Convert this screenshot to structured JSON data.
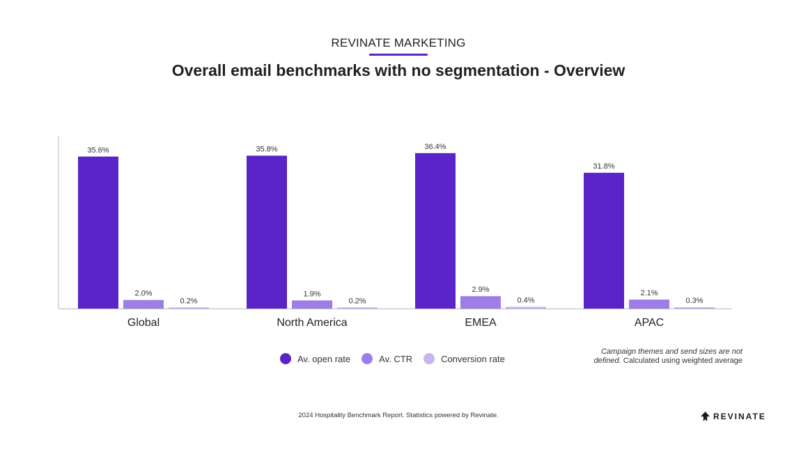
{
  "header": {
    "eyebrow": "REVINATE MARKETING",
    "title": "Overall email benchmarks with no segmentation - Overview"
  },
  "colors": {
    "accent": "#5a24c8",
    "open_rate": "#5a24c8",
    "ctr": "#9f7de8",
    "conversion": "#c7b5ee",
    "axis": "#b8b8c2"
  },
  "chart_data": {
    "type": "bar",
    "categories": [
      "Global",
      "North America",
      "EMEA",
      "APAC"
    ],
    "series": [
      {
        "name": "Av. open rate",
        "values": [
          35.6,
          35.8,
          36.4,
          31.8
        ],
        "labels": [
          "35.6%",
          "35.8%",
          "36.4%",
          "31.8%"
        ]
      },
      {
        "name": "Av. CTR",
        "values": [
          2.0,
          1.9,
          2.9,
          2.1
        ],
        "labels": [
          "2.0%",
          "1.9%",
          "2.9%",
          "2.1%"
        ]
      },
      {
        "name": "Conversion rate",
        "values": [
          0.2,
          0.2,
          0.4,
          0.3
        ],
        "labels": [
          "0.2%",
          "0.2%",
          "0.4%",
          "0.3%"
        ]
      }
    ],
    "ylim": [
      0,
      40
    ],
    "grid": false,
    "legend_position": "bottom"
  },
  "legend": {
    "items": [
      "Av. open rate",
      "Av. CTR",
      "Conversion rate"
    ]
  },
  "note": {
    "line1": "Campaign themes and send sizes are not",
    "line2_italic": "defined.",
    "line2_rest": " Calculated using weighted average"
  },
  "footer": {
    "text": "2024 Hospitality Benchmark Report. Statistics powered by Revinate."
  },
  "brand": {
    "name": "REVINATE",
    "icon": "revinate-logo-icon"
  }
}
